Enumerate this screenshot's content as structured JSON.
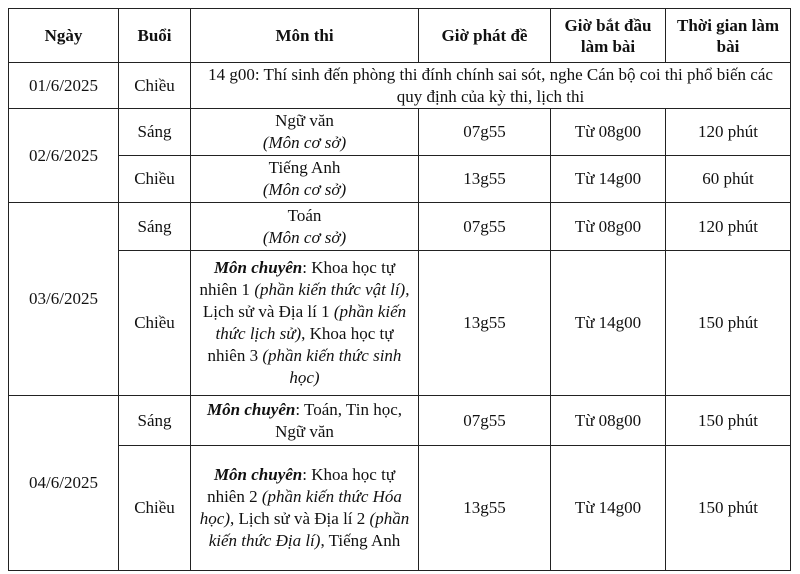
{
  "table": {
    "header": [
      "Ngày",
      "Buổi",
      "Môn thi",
      "Giờ phát đề",
      "Giờ bắt đầu làm bài",
      "Thời gian làm bài"
    ],
    "rows": [
      {
        "date": "01/6/2025",
        "session": "Chiều",
        "note": "14 g00: Thí sinh đến phòng thi đính chính sai sót, nghe Cán bộ coi thi phổ biến các quy định của kỳ thi, lịch thi"
      },
      {
        "date": "02/6/2025",
        "session": "Sáng",
        "subject": [
          "Ngữ văn",
          "(Môn cơ sở)"
        ],
        "paper_time": "07g55",
        "start": "Từ 08g00",
        "duration": "120 phút"
      },
      {
        "session": "Chiều",
        "subject": [
          "Tiếng Anh",
          "(Môn cơ sở)"
        ],
        "paper_time": "13g55",
        "start": "Từ 14g00",
        "duration": "60 phút"
      },
      {
        "date": "03/6/2025",
        "session": "Sáng",
        "subject": [
          "Toán",
          "(Môn cơ sở)"
        ],
        "paper_time": "07g55",
        "start": "Từ 08g00",
        "duration": "120 phút"
      },
      {
        "session": "Chiều",
        "subject": [
          "Môn chuyên",
          ": Khoa học tự nhiên 1 ",
          "(phần kiến thức vật lí)",
          ", Lịch sử và Địa lí 1 ",
          "(phần kiến thức lịch sử)",
          ", Khoa học tự nhiên 3 ",
          "(phần kiến thức sinh học)"
        ],
        "paper_time": "13g55",
        "start": "Từ 14g00",
        "duration": "150 phút"
      },
      {
        "date": "04/6/2025",
        "session": "Sáng",
        "subject": [
          "Môn chuyên",
          ": Toán, Tin học, Ngữ văn"
        ],
        "paper_time": "07g55",
        "start": "Từ 08g00",
        "duration": "150 phút"
      },
      {
        "session": "Chiều",
        "subject": [
          "Môn chuyên",
          ": Khoa học tự nhiên 2 ",
          "(phần kiến thức Hóa học)",
          ", Lịch sử và Địa lí 2 ",
          "(phần kiến thức Địa lí)",
          ", Tiếng Anh"
        ],
        "paper_time": "13g55",
        "start": "Từ 14g00",
        "duration": "150 phút"
      }
    ]
  }
}
